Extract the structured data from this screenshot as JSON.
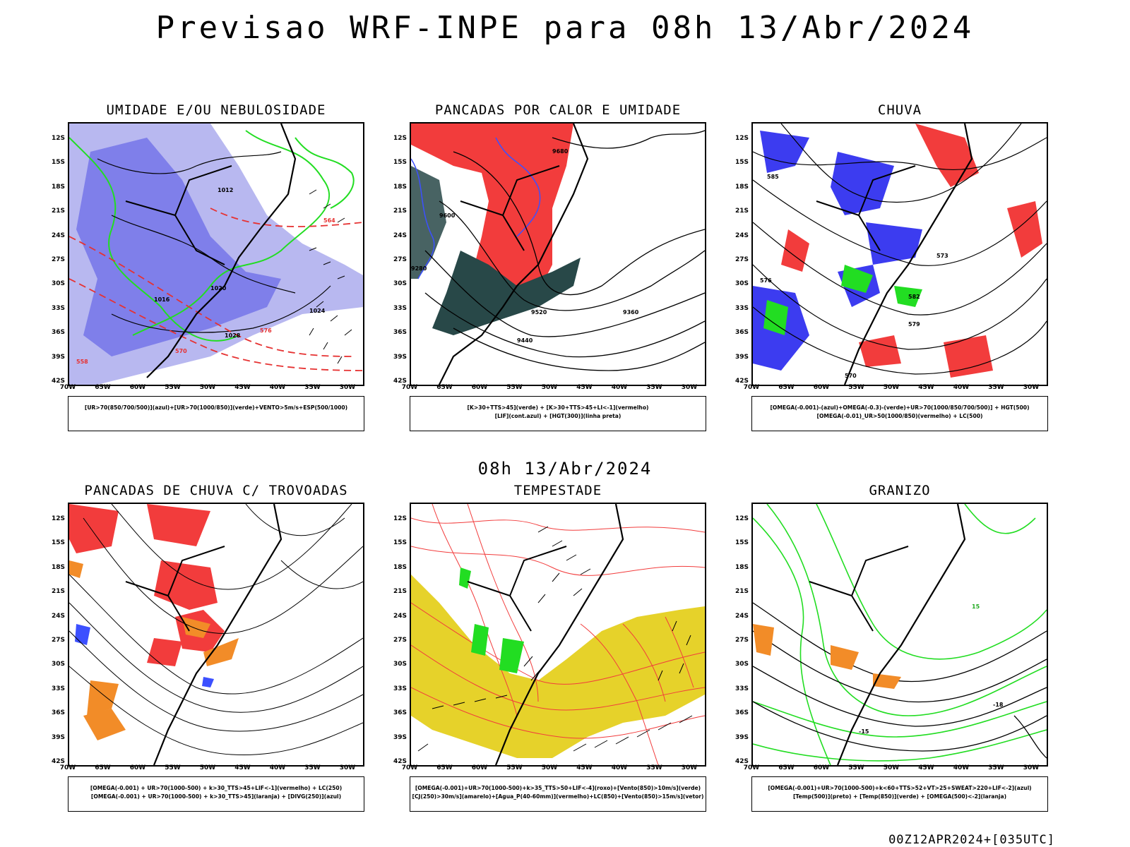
{
  "header": {
    "title": "Previsao WRF-INPE  para 08h 13/Abr/2024",
    "mid_date": "08h 13/Abr/2024",
    "run_stamp": "00Z12APR2024+[035UTC]"
  },
  "axes": {
    "lat_labels": [
      "12S",
      "15S",
      "18S",
      "21S",
      "24S",
      "27S",
      "30S",
      "33S",
      "36S",
      "39S",
      "42S"
    ],
    "lon_labels": [
      "70W",
      "65W",
      "60W",
      "55W",
      "50W",
      "45W",
      "40W",
      "35W",
      "30W"
    ]
  },
  "panels": [
    {
      "id": "umidade",
      "title": "UMIDADE E/OU NEBULOSIDADE",
      "legend": [
        "[UR>70(850/700/500)](azul)+[UR>70(1000/850)](verde)+VENTO>5m/s+ESP(500/1000)"
      ],
      "contour_labels": [
        "1012",
        "1016",
        "1020",
        "1024",
        "1028",
        "576",
        "570",
        "564",
        "558"
      ]
    },
    {
      "id": "pancadas-calor",
      "title": "PANCADAS POR CALOR E UMIDADE",
      "legend": [
        "[K>30+TTS>45](verde) + [K>30+TTS>45+LI<-1](vermelho)",
        "[LIF](cont.azul) + [HGT(300)](linha preta)"
      ],
      "contour_labels": [
        "9680",
        "9600",
        "9520",
        "9440",
        "9360",
        "9280"
      ]
    },
    {
      "id": "chuva",
      "title": "CHUVA",
      "legend": [
        "[OMEGA(-0.001)-(azul)+OMEGA(-0.3)-(verde)+UR>70(1000/850/700/500)] + HGT(500)",
        "[OMEGA(-0.01)_UR>50(1000/850)(vermelho) + LC(500)"
      ],
      "contour_labels": [
        "585",
        "582",
        "579",
        "576",
        "573",
        "570"
      ]
    },
    {
      "id": "pancadas-trovoadas",
      "title": "PANCADAS DE CHUVA C/ TROVOADAS",
      "legend": [
        "[OMEGA(-0.001) + UR>70(1000-500) + k>30_TTS>45+LIF<-1](vermelho) + LC(250)",
        "[OMEGA(-0.001) + UR>70(1000-500) + k>30_TTS>45](laranja) + [DIVG(250)](azul)"
      ],
      "contour_labels": []
    },
    {
      "id": "tempestade",
      "title": "TEMPESTADE",
      "legend": [
        "[OMEGA(-0.001)+UR>70(1000-500)+k>35_TTS>50+LIF<-4](roxo)+[Vento(850)>10m/s](verde)",
        "[CJ(250)>30m/s](amarelo)+[Agua_P(40-60mm)](vermelho)+LC(850)+[Vento(850)>15m/s](vetor)"
      ],
      "contour_labels": []
    },
    {
      "id": "granizo",
      "title": "GRANIZO",
      "legend": [
        "[OMEGA(-0.001)+UR>70(1000-500)+k<60+TTS>52+VT>25+SWEAT>220+LIF<-2](azul)",
        "[Temp(500)](preto) + [Temp(850)](verde) + [OMEGA(500)<-2](laranja)"
      ],
      "contour_labels": [
        "-18",
        "-15",
        "15"
      ]
    }
  ],
  "colors": {
    "blue_light": "#b8b8f0",
    "blue": "#5f5fe6",
    "green": "#22dd22",
    "red": "#f23c3c",
    "dark_teal": "#284848",
    "orange": "#f28c28",
    "yellow": "#e6d22a",
    "black": "#000000"
  }
}
